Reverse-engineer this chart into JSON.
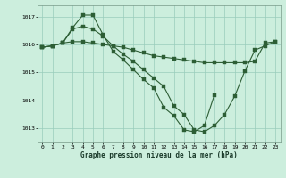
{
  "title": "Graphe pression niveau de la mer (hPa)",
  "background_color": "#cceedd",
  "grid_color": "#99ccbb",
  "line_color": "#2d5e35",
  "xlim": [
    -0.5,
    23.5
  ],
  "ylim": [
    1012.5,
    1017.4
  ],
  "yticks": [
    1013,
    1014,
    1015,
    1016,
    1017
  ],
  "xticks": [
    0,
    1,
    2,
    3,
    4,
    5,
    6,
    7,
    8,
    9,
    10,
    11,
    12,
    13,
    14,
    15,
    16,
    17,
    18,
    19,
    20,
    21,
    22,
    23
  ],
  "line1_x": [
    0,
    1,
    2,
    3,
    4,
    5,
    6,
    7,
    8,
    9,
    10,
    11,
    12,
    13,
    14,
    15,
    16,
    17,
    18,
    19,
    20,
    21,
    22,
    23
  ],
  "line1_y": [
    1015.9,
    1015.95,
    1016.05,
    1016.1,
    1016.1,
    1016.05,
    1016.0,
    1015.95,
    1015.9,
    1015.8,
    1015.7,
    1015.6,
    1015.55,
    1015.5,
    1015.45,
    1015.4,
    1015.35,
    1015.35,
    1015.35,
    1015.35,
    1015.35,
    1015.4,
    1016.05,
    1016.1
  ],
  "line2_x": [
    0,
    1,
    2,
    3,
    4,
    5,
    6,
    7,
    8,
    9,
    10,
    11,
    12,
    13,
    14,
    15,
    16,
    17,
    18,
    19,
    20,
    21,
    22,
    23
  ],
  "line2_y": [
    1015.9,
    1015.95,
    1016.05,
    1016.55,
    1016.65,
    1016.55,
    1016.3,
    1015.95,
    1015.65,
    1015.4,
    1015.1,
    1014.8,
    1014.5,
    1013.8,
    1013.5,
    1012.95,
    1012.88,
    1013.1,
    1013.5,
    1014.15,
    1015.05,
    1015.8,
    1015.95,
    1016.1
  ],
  "line3_x": [
    0,
    1,
    2,
    3,
    4,
    5,
    6,
    7,
    8,
    9,
    10,
    11,
    12,
    13,
    14,
    15,
    16,
    17
  ],
  "line3_y": [
    1015.9,
    1015.95,
    1016.05,
    1016.6,
    1017.05,
    1017.05,
    1016.35,
    1015.75,
    1015.45,
    1015.1,
    1014.75,
    1014.45,
    1013.75,
    1013.45,
    1012.95,
    1012.88,
    1013.1,
    1014.2
  ]
}
